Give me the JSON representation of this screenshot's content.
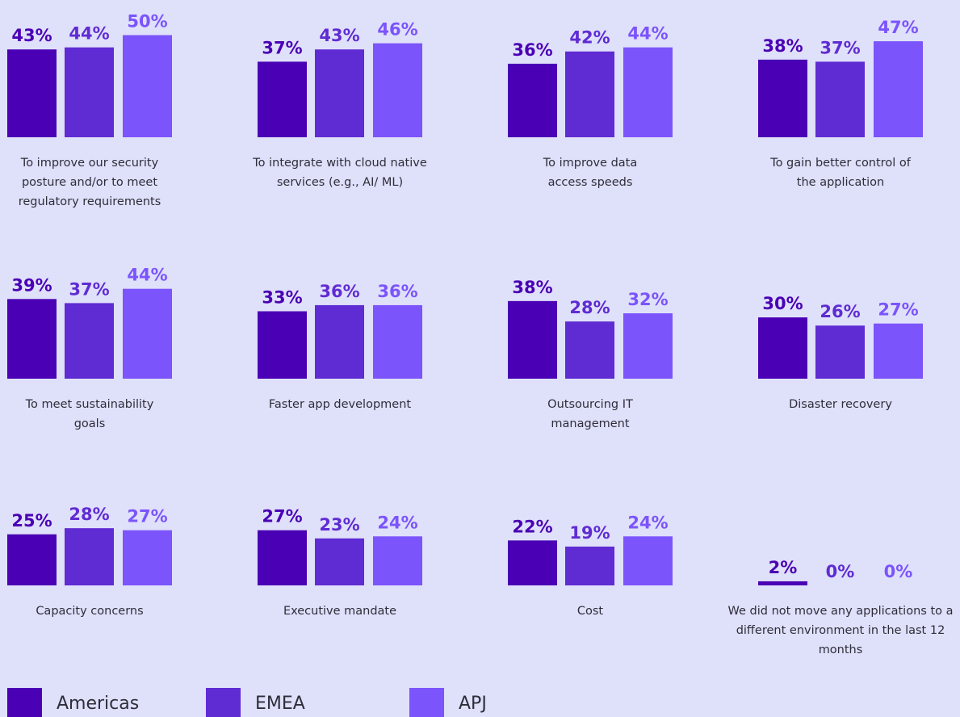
{
  "chart_data": {
    "type": "bar",
    "categories": [
      "To improve our security posture and/or to meet regulatory requirements",
      "To integrate with cloud native services (e.g., AI/ ML)",
      "To improve data access speeds",
      "To gain better control of the application",
      "To meet sustainability goals",
      "Faster app development",
      "Outsourcing IT management",
      "Disaster recovery",
      "Capacity concerns",
      "Executive mandate",
      "Cost",
      "We did not move any applications to a different environment in the last 12 months"
    ],
    "series": [
      {
        "name": "Americas",
        "color": "#4a00b4",
        "values": [
          43,
          37,
          36,
          38,
          39,
          33,
          38,
          30,
          25,
          27,
          22,
          2
        ],
        "value_labels": [
          "43%",
          "37%",
          "36%",
          "38%",
          "39%",
          "33%",
          "38%",
          "30%",
          "25%",
          "27%",
          "22%",
          "2%"
        ]
      },
      {
        "name": "EMEA",
        "color": "#5f2bd3",
        "values": [
          44,
          43,
          42,
          37,
          37,
          36,
          28,
          26,
          28,
          23,
          19,
          0
        ],
        "value_labels": [
          "44%",
          "43%",
          "42%",
          "37%",
          "37%",
          "36%",
          "28%",
          "26%",
          "28%",
          "23%",
          "19%",
          "0%"
        ]
      },
      {
        "name": "APJ",
        "color": "#7b54fb",
        "values": [
          50,
          46,
          44,
          47,
          44,
          36,
          32,
          27,
          27,
          24,
          24,
          0
        ],
        "value_labels": [
          "50%",
          "46%",
          "44%",
          "47%",
          "44%",
          "36%",
          "32%",
          "27%",
          "27%",
          "24%",
          "24%",
          "0%"
        ]
      }
    ]
  }
}
